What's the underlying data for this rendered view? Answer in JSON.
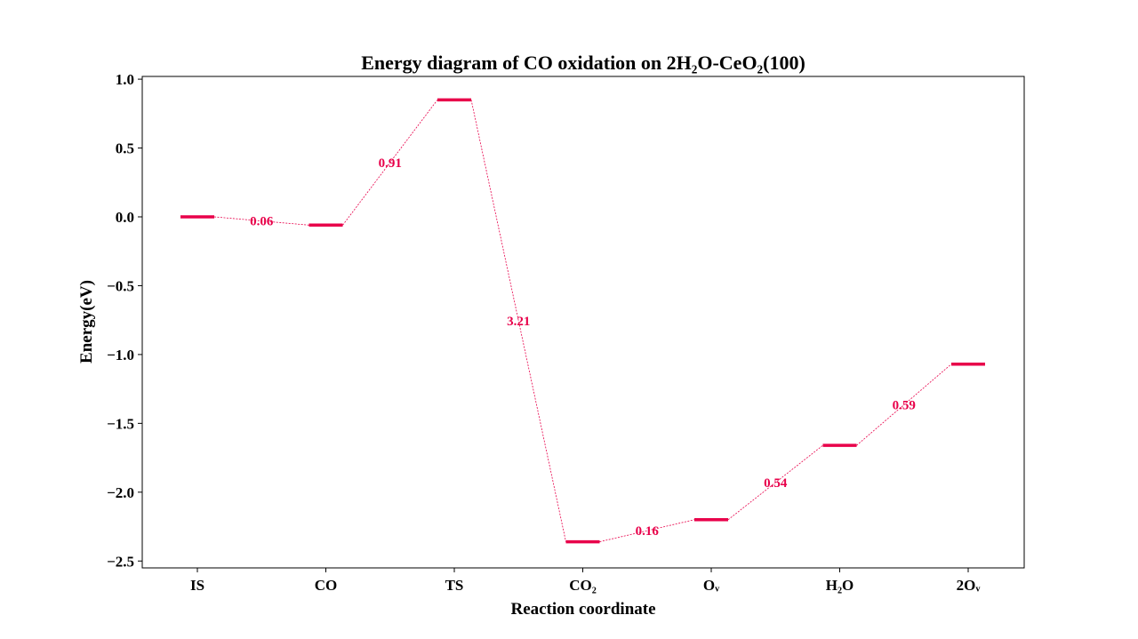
{
  "chart_data": {
    "type": "line",
    "title": "Energy diagram of CO oxidation on 2H₂O-CeO₂(100)",
    "xlabel": "Reaction coordinate",
    "ylabel": "Energy(eV)",
    "categories": [
      "IS",
      "CO",
      "TS",
      "CO₂",
      "Oᵥ",
      "H₂O",
      "2Oᵥ"
    ],
    "values": [
      0.0,
      -0.06,
      0.85,
      -2.36,
      -2.2,
      -1.66,
      -1.07
    ],
    "barrier_labels": [
      "0.06",
      "0.91",
      "3.21",
      "0.16",
      "0.54",
      "0.59"
    ],
    "ylim": [
      -2.55,
      1.02
    ],
    "yticks": [
      1.0,
      0.5,
      0.0,
      -0.5,
      -1.0,
      -1.5,
      -2.0,
      -2.5
    ],
    "ytick_labels": [
      "1.0",
      "0.5",
      "0.0",
      "−0.5",
      "−1.0",
      "−1.5",
      "−2.0",
      "−2.5"
    ],
    "grid": false,
    "color": "#e8004a"
  }
}
